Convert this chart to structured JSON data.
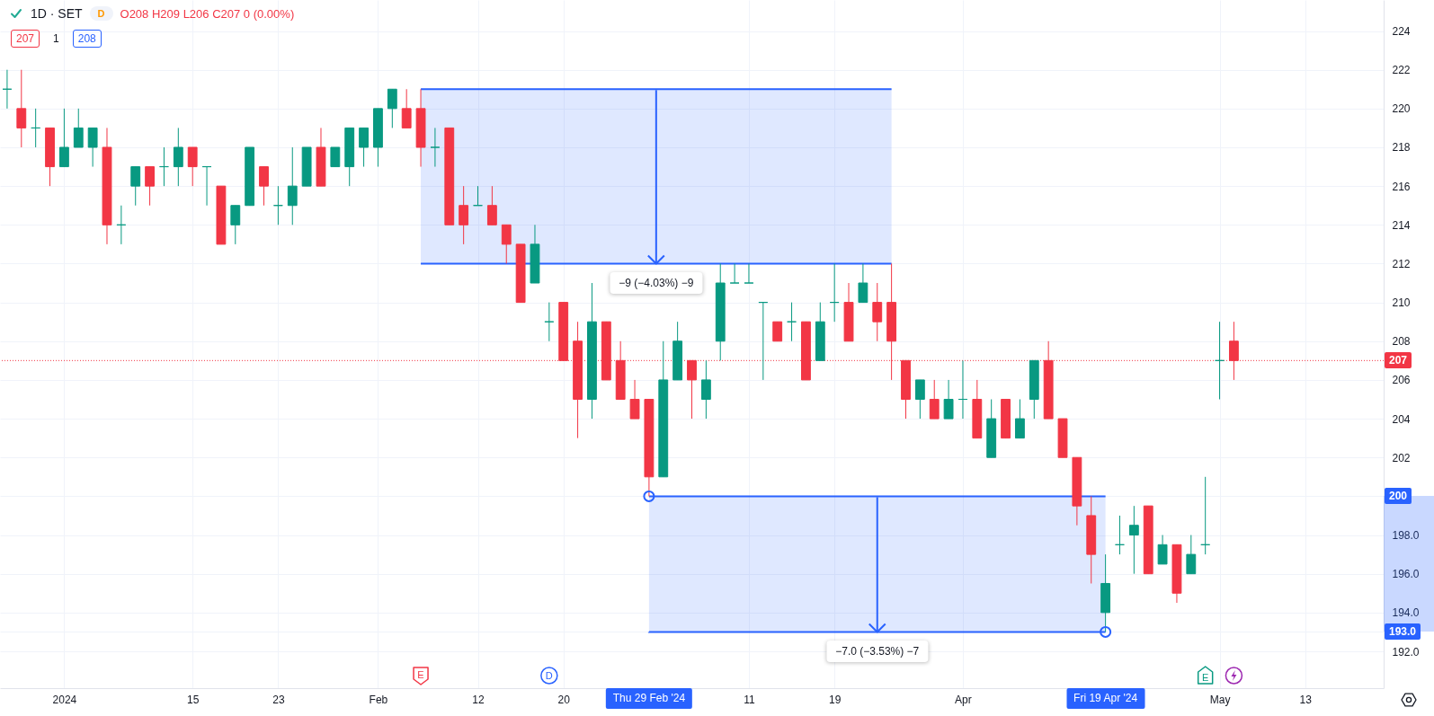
{
  "chart_data": {
    "type": "candlestick",
    "title": "1D · SET",
    "subtitle": "O208 H209 L206 C207 0 (0.00%)",
    "annotations": [
      "207",
      "1",
      "208",
      "D",
      "E",
      "D",
      "E"
    ],
    "categories": [
      null,
      null,
      null,
      null,
      "2024",
      null,
      null,
      null,
      null,
      null,
      null,
      null,
      null,
      "15",
      null,
      null,
      null,
      null,
      null,
      "23",
      null,
      null,
      null,
      null,
      null,
      null,
      "Feb",
      null,
      null,
      null,
      null,
      null,
      null,
      "12",
      null,
      null,
      null,
      null,
      null,
      "20",
      null,
      null,
      null,
      null,
      null,
      "Thu 29 Feb '24",
      null,
      null,
      null,
      null,
      null,
      null,
      "11",
      null,
      null,
      null,
      null,
      null,
      "19",
      null,
      null,
      null,
      null,
      null,
      null,
      null,
      null,
      "Apr",
      null,
      null,
      null,
      null,
      null,
      null,
      null,
      null,
      null,
      "Fri 19 Apr '24",
      null,
      null,
      null,
      null,
      null,
      null,
      null,
      "May",
      null,
      null,
      null,
      null,
      null,
      "13",
      null,
      null,
      null,
      null,
      null
    ],
    "ohlc": [
      [
        221,
        222,
        220,
        221
      ],
      [
        220,
        222,
        218,
        219
      ],
      [
        219,
        220,
        218,
        219
      ],
      [
        219,
        219,
        216,
        217
      ],
      [
        217,
        220,
        217,
        218
      ],
      [
        218,
        220,
        218,
        219
      ],
      [
        218,
        219,
        217,
        219
      ],
      [
        218,
        219,
        213,
        214
      ],
      [
        214,
        215,
        213,
        214
      ],
      [
        216,
        217,
        215,
        217
      ],
      [
        217,
        217,
        215,
        216
      ],
      [
        217,
        218,
        216,
        217
      ],
      [
        217,
        219,
        216,
        218
      ],
      [
        218,
        218,
        216,
        217
      ],
      [
        217,
        217,
        215,
        217
      ],
      [
        216,
        216,
        213,
        213
      ],
      [
        214,
        215,
        213,
        215
      ],
      [
        215,
        218,
        215,
        218
      ],
      [
        217,
        217,
        215,
        216
      ],
      [
        215,
        216,
        214,
        215
      ],
      [
        215,
        218,
        214,
        216
      ],
      [
        216,
        218,
        216,
        218
      ],
      [
        218,
        219,
        216,
        216
      ],
      [
        217,
        218,
        217,
        218
      ],
      [
        217,
        219,
        216,
        219
      ],
      [
        218,
        219,
        217,
        219
      ],
      [
        218,
        220,
        217,
        220
      ],
      [
        220,
        221,
        219,
        221
      ],
      [
        220,
        221,
        219,
        219
      ],
      [
        220,
        221,
        217,
        218
      ],
      [
        218,
        219,
        217,
        218
      ],
      [
        219,
        219,
        214,
        214
      ],
      [
        215,
        216,
        213,
        214
      ],
      [
        215,
        216,
        215,
        215
      ],
      [
        215,
        216,
        214,
        214
      ],
      [
        214,
        214,
        212,
        213
      ],
      [
        213,
        213,
        210,
        210
      ],
      [
        211,
        214,
        211,
        213
      ],
      [
        209,
        210,
        208,
        209
      ],
      [
        210,
        210,
        207,
        207
      ],
      [
        208,
        209,
        203,
        205
      ],
      [
        205,
        211,
        204,
        209
      ],
      [
        209,
        209,
        206,
        206
      ],
      [
        207,
        208,
        205,
        205
      ],
      [
        205,
        206,
        204,
        204
      ],
      [
        205,
        205,
        200,
        201
      ],
      [
        201,
        208,
        201,
        206
      ],
      [
        206,
        209,
        206,
        208
      ],
      [
        207,
        207,
        204,
        206
      ],
      [
        205,
        207,
        204,
        206
      ],
      [
        208,
        212,
        207,
        211
      ],
      [
        211,
        212,
        211,
        211
      ],
      [
        211,
        212,
        211,
        211
      ],
      [
        210,
        210,
        206,
        210
      ],
      [
        209,
        209,
        208,
        208
      ],
      [
        209,
        210,
        208,
        209
      ],
      [
        209,
        209,
        206,
        206
      ],
      [
        207,
        210,
        207,
        209
      ],
      [
        210,
        212,
        209,
        210
      ],
      [
        210,
        211,
        208,
        208
      ],
      [
        210,
        212,
        210,
        211
      ],
      [
        210,
        211,
        208,
        209
      ],
      [
        210,
        212,
        206,
        208
      ],
      [
        207,
        207,
        204,
        205
      ],
      [
        205,
        206,
        204,
        206
      ],
      [
        205,
        206,
        204,
        204
      ],
      [
        204,
        206,
        204,
        205
      ],
      [
        205,
        207,
        204,
        205
      ],
      [
        205,
        206,
        203,
        203
      ],
      [
        202,
        205,
        202,
        204
      ],
      [
        205,
        205,
        203,
        203
      ],
      [
        203,
        205,
        203,
        204
      ],
      [
        205,
        207,
        204,
        207
      ],
      [
        207,
        208,
        204,
        204
      ],
      [
        204,
        204,
        202,
        202
      ],
      [
        202,
        202,
        198.5,
        199.5
      ],
      [
        199,
        200,
        195.5,
        197
      ],
      [
        194,
        197,
        193,
        195.5
      ],
      [
        197.5,
        199,
        197,
        197.5
      ],
      [
        198,
        199.5,
        196,
        198.5
      ],
      [
        199.5,
        199.5,
        196,
        196
      ],
      [
        196.5,
        198,
        196.5,
        197.5
      ],
      [
        197.5,
        197.5,
        194.5,
        195
      ],
      [
        196,
        198,
        196,
        197
      ],
      [
        197.5,
        201,
        197,
        197.5
      ],
      [
        207,
        209,
        205,
        207
      ],
      [
        208,
        209,
        206,
        207
      ],
      null,
      null,
      null,
      null,
      null,
      null,
      null,
      null,
      null,
      null
    ],
    "colors": [
      "#089981",
      "#f23645",
      "#089981",
      "#f23645",
      "#089981",
      "#089981",
      "#089981",
      "#f23645",
      "#089981",
      "#089981",
      "#f23645",
      "#089981",
      "#089981",
      "#f23645",
      "#089981",
      "#f23645",
      "#089981",
      "#089981",
      "#f23645",
      "#089981",
      "#089981",
      "#089981",
      "#f23645",
      "#089981",
      "#089981",
      "#089981",
      "#089981",
      "#089981",
      "#f23645",
      "#f23645",
      "#089981",
      "#f23645",
      "#f23645",
      "#089981",
      "#f23645",
      "#f23645",
      "#f23645",
      "#089981",
      "#089981",
      "#f23645",
      "#f23645",
      "#089981",
      "#f23645",
      "#f23645",
      "#f23645",
      "#f23645",
      "#089981",
      "#089981",
      "#f23645",
      "#089981",
      "#089981",
      "#089981",
      "#089981",
      "#089981",
      "#f23645",
      "#089981",
      "#f23645",
      "#089981",
      "#089981",
      "#f23645",
      "#089981",
      "#f23645",
      "#f23645",
      "#f23645",
      "#089981",
      "#f23645",
      "#089981",
      "#089981",
      "#f23645",
      "#089981",
      "#f23645",
      "#089981",
      "#089981",
      "#f23645",
      "#f23645",
      "#f23645",
      "#f23645",
      "#089981",
      "#089981",
      "#089981",
      "#f23645",
      "#089981",
      "#f23645",
      "#089981",
      "#089981",
      "#089981",
      "#f23645",
      null,
      null,
      null,
      null,
      null,
      null,
      null,
      null,
      null,
      null
    ],
    "ylim": [
      190.1,
      225.6
    ],
    "yticks": [
      {
        "value": 192,
        "label": "192.0"
      },
      {
        "value": 193,
        "label": "193.0"
      },
      {
        "value": 194,
        "label": "194.0"
      },
      {
        "value": 196,
        "label": "196.0"
      },
      {
        "value": 198,
        "label": "198.0"
      },
      200,
      202,
      204,
      206,
      208,
      210,
      212,
      214,
      216,
      218,
      220,
      222,
      224
    ],
    "ref_lines": [
      {
        "axis": "y",
        "value": 207,
        "label": "207",
        "color": "#f23645",
        "line_style": "dotted"
      }
    ],
    "bands": [
      {
        "axis": "y",
        "from": 221,
        "to": 212,
        "label": "−9 (−4.03%) −9",
        "color": "#2962ff"
      },
      {
        "axis": "y",
        "from": 200,
        "to": 193,
        "label": "−7.0 (−3.53%) −7",
        "color": "#2962ff"
      }
    ],
    "grid": true
  }
}
